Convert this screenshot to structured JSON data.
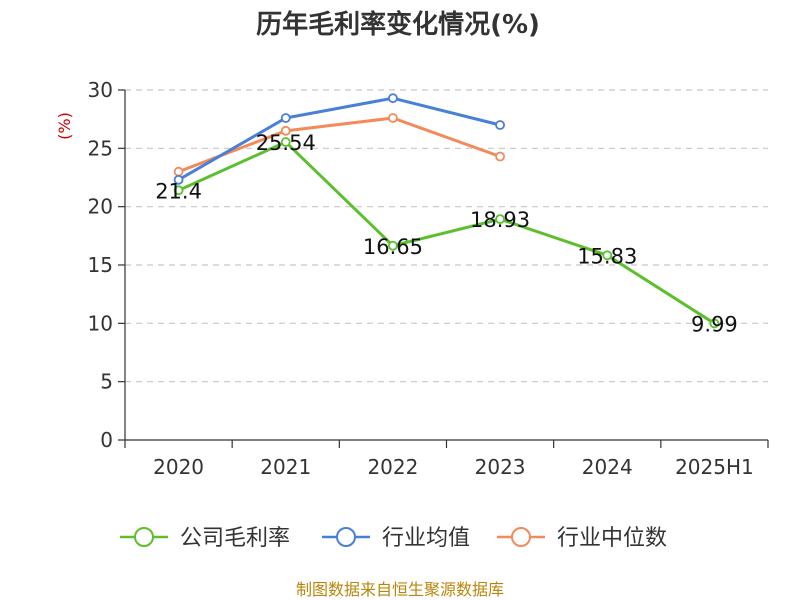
{
  "chart_data": {
    "type": "line",
    "title": "历年毛利率变化情况(%)",
    "ylabel": "(%)",
    "xlabel": "",
    "categories": [
      "2020",
      "2021",
      "2022",
      "2023",
      "2024",
      "2025H1"
    ],
    "ylim": [
      0,
      30
    ],
    "yticks": [
      0,
      5,
      10,
      15,
      20,
      25,
      30
    ],
    "grid": true,
    "legend_position": "bottom",
    "series": [
      {
        "name": "公司毛利率",
        "color": "#5cbf2e",
        "values": [
          21.4,
          25.54,
          16.65,
          18.93,
          15.83,
          9.99
        ],
        "labels": [
          "21.4",
          "25.54",
          "16.65",
          "18.93",
          "15.83",
          "9.99"
        ]
      },
      {
        "name": "行业均值",
        "color": "#4a7fd8",
        "values": [
          22.3,
          27.6,
          29.3,
          27.0,
          null,
          null
        ]
      },
      {
        "name": "行业中位数",
        "color": "#f28a5a",
        "values": [
          23.0,
          26.5,
          27.6,
          24.3,
          null,
          null
        ]
      }
    ],
    "source": "制图数据来自恒生聚源数据库"
  }
}
